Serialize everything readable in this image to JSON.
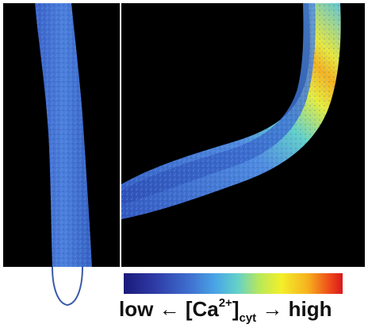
{
  "legend": {
    "low": "low",
    "arrow_left": "←",
    "ion_open": "[Ca",
    "ion_charge": "2+",
    "ion_close": "]",
    "compartment": "cyt",
    "arrow_right": "→",
    "high": "high"
  },
  "colors": {
    "background": "#000000",
    "low": "#1a1a7a",
    "mid_low": "#3f6fd0",
    "mid": "#63d1c9",
    "mid_high": "#f3ef2a",
    "high": "#d8171b",
    "root_tip_outline": "#3b5aa8"
  }
}
